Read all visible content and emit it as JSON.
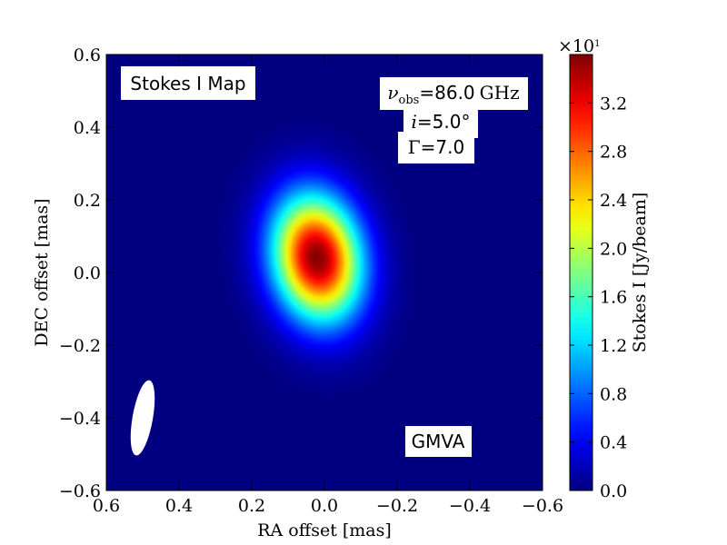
{
  "chart_data": {
    "type": "heatmap",
    "title": "",
    "xlabel": "RA offset [mas]",
    "ylabel": "DEC offset [mas]",
    "xlim": [
      0.6,
      -0.6
    ],
    "ylim": [
      -0.6,
      0.6
    ],
    "x_ticks": [
      0.6,
      0.4,
      0.2,
      0.0,
      -0.2,
      -0.4,
      -0.6
    ],
    "x_tick_labels": [
      "0.6",
      "0.4",
      "0.2",
      "0.0",
      "−0.2",
      "−0.4",
      "−0.6"
    ],
    "y_ticks": [
      0.6,
      0.4,
      0.2,
      0.0,
      -0.2,
      -0.4,
      -0.6
    ],
    "y_tick_labels": [
      "0.6",
      "0.4",
      "0.2",
      "0.0",
      "−0.2",
      "−0.4",
      "−0.6"
    ],
    "colormap": "jet",
    "source": {
      "peak_x": 0.02,
      "peak_y": 0.04,
      "peak_value": 35.8,
      "sigma_major": 0.12,
      "sigma_minor": 0.083,
      "position_angle_deg": -10
    },
    "beam": {
      "center_x": 0.5,
      "center_y": -0.4,
      "major": 0.21,
      "minor": 0.056,
      "position_angle_deg": 10
    },
    "colorbar": {
      "label": "Stokes I [Jy/beam]",
      "range": [
        0.0,
        3.6
      ],
      "ticks": [
        0.0,
        0.4,
        0.8,
        1.2,
        1.6,
        2.0,
        2.4,
        2.8,
        3.2
      ],
      "tick_labels": [
        "0.0",
        "0.4",
        "0.8",
        "1.2",
        "1.6",
        "2.0",
        "2.4",
        "2.8",
        "3.2"
      ],
      "multiplier_base": "×10",
      "multiplier_exp": "1"
    },
    "annotations": {
      "map_title": "Stokes I Map",
      "array": "GMVA",
      "freq_symbol": "ν",
      "freq_sub": "obs",
      "freq_value": "=86.0",
      "freq_unit": "GHz",
      "incl_symbol": "i",
      "incl_value": "=5.0°",
      "gamma_symbol": "Γ",
      "gamma_value": "=7.0"
    }
  }
}
